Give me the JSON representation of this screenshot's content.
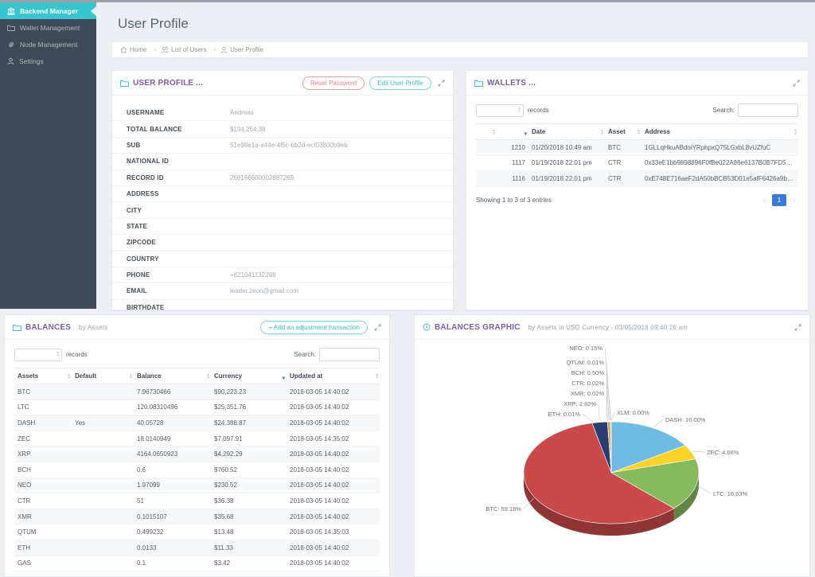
{
  "icons": {
    "sort_up": "▴",
    "sort_down": "▾"
  },
  "colors": {
    "accent_cyan": "#38c5cf",
    "accent_purple": "#7a5fa5",
    "accent_blue": "#3a7bd5",
    "danger": "#e98b85",
    "sidebar_bg": "#3e4a57"
  },
  "sidebar": {
    "items": [
      {
        "label": "Backend Manager",
        "icon": "bank-icon",
        "active": true
      },
      {
        "label": "Wallet Management",
        "icon": "folder-icon",
        "active": false
      },
      {
        "label": "Node Management",
        "icon": "link-icon",
        "active": false
      },
      {
        "label": "Settings",
        "icon": "user-icon",
        "active": false
      }
    ]
  },
  "page": {
    "title": "User Profile",
    "breadcrumb": [
      {
        "label": "Home",
        "icon": "home-icon"
      },
      {
        "label": "List of Users",
        "icon": "users-icon"
      },
      {
        "label": "User Profile",
        "icon": "user-icon"
      }
    ]
  },
  "user_profile_panel": {
    "title": "USER PROFILE ...",
    "reset_button": "Reset Password",
    "edit_button": "Edit User Profile",
    "fields": [
      {
        "label": "USERNAME",
        "value": "Andreas"
      },
      {
        "label": "TOTAL BALANCE",
        "value": "$194,254.38"
      },
      {
        "label": "SUB",
        "value": "51e98e1a-a44e-4f5c-bb2d-ecf03800b9eb"
      },
      {
        "label": "NATIONAL ID",
        "value": ""
      },
      {
        "label": "RECORD ID",
        "value": "268166600002887269"
      },
      {
        "label": "ADDRESS",
        "value": ""
      },
      {
        "label": "CITY",
        "value": ""
      },
      {
        "label": "STATE",
        "value": ""
      },
      {
        "label": "ZIPCODE",
        "value": ""
      },
      {
        "label": "COUNTRY",
        "value": ""
      },
      {
        "label": "PHONE",
        "value": "+821041132298"
      },
      {
        "label": "EMAIL",
        "value": "leader.zeon@gmail.com"
      },
      {
        "label": "BIRTHDATE",
        "value": ""
      }
    ]
  },
  "wallets_panel": {
    "title": "WALLETS ...",
    "records_label": "records",
    "search_label": "Search:",
    "table": {
      "headers": [
        "",
        "",
        "Date",
        "Asset",
        "Address"
      ],
      "rows": [
        [
          "1210",
          "01/20/2018 10:49 am",
          "BTC",
          "1GLLqHkuABdoiYRphpxQ75LGxbL8vUZfuC"
        ],
        [
          "1117",
          "01/19/2018 22:01 pm",
          "CTR",
          "0x33eE1bb9898896F0fBe022A86e6137B0B7FD5B64"
        ],
        [
          "1116",
          "01/19/2018 22:01 pm",
          "CTR",
          "0xE748E716aeF2dA50bBCB53D01e5afF6426a9b981"
        ]
      ]
    },
    "footer_text": "Showing 1 to 3 of 3 entries",
    "pagination": {
      "prev": "‹",
      "current": "1",
      "next": "›"
    }
  },
  "balances_panel": {
    "title": "BALANCES",
    "subtitle": "by Assets",
    "add_button": "+ Add an adjustment transaction",
    "records_label": "records",
    "search_label": "Search:",
    "table": {
      "headers": [
        "Assets",
        "Default",
        "Balance",
        "Currency",
        "Updated at"
      ],
      "rows": [
        [
          "BTC",
          "",
          "7.96730466",
          "$90,223.23",
          "2018-03-05 14:40:02"
        ],
        [
          "LTC",
          "",
          "120.08310496",
          "$25,351.76",
          "2018-03-05 14:40:02"
        ],
        [
          "DASH",
          "Yes",
          "40.05728",
          "$24,388.87",
          "2018-03-05 14:40:02"
        ],
        [
          "ZEC",
          "",
          "18.0140949",
          "$7,097.91",
          "2018-03-05 14:35:02"
        ],
        [
          "XRP",
          "",
          "4164.0650923",
          "$4,292.29",
          "2018-03-05 14:40:02"
        ],
        [
          "BCH",
          "",
          "0.6",
          "$760.52",
          "2018-03-05 14:40:02"
        ],
        [
          "NEO",
          "",
          "1.97099",
          "$230.52",
          "2018-03-05 14:40:02"
        ],
        [
          "CTR",
          "",
          "51",
          "$36.38",
          "2018-03-05 14:40:02"
        ],
        [
          "XMR",
          "",
          "0.1015107",
          "$35.68",
          "2018-03-05 14:40:02"
        ],
        [
          "QTUM",
          "",
          "0.499232",
          "$13.48",
          "2018-03-05 14:35:03"
        ],
        [
          "ETH",
          "",
          "0.0133",
          "$11.33",
          "2018-03-05 14:40:02"
        ],
        [
          "GAS",
          "",
          "0.1",
          "$3.42",
          "2018-03-05 14:40:02"
        ]
      ]
    }
  },
  "balances_graphic_panel": {
    "title": "BALANCES GRAPHIC",
    "subtitle": "by Assets in USD Currency - 03/05/2018 09:40:26 am"
  },
  "chart_data": {
    "type": "pie",
    "title": "BALANCES GRAPHIC by Assets in USD Currency - 03/05/2018 09:40:26 am",
    "unit": "percent",
    "legend_position": "callout-labels",
    "slices": [
      {
        "label": "XLM",
        "value": 0.0,
        "color": "#c9ced4"
      },
      {
        "label": "DASH",
        "value": 16.0,
        "color": "#6fbbe3"
      },
      {
        "label": "ZEC",
        "value": 4.66,
        "color": "#fdd32a"
      },
      {
        "label": "LTC",
        "value": 16.63,
        "color": "#87b95f"
      },
      {
        "label": "BTC",
        "value": 59.18,
        "color": "#c84a4b"
      },
      {
        "label": "ETH",
        "value": 0.01,
        "color": "#4d5760"
      },
      {
        "label": "XRP",
        "value": 2.82,
        "color": "#2a3d70"
      },
      {
        "label": "XMR",
        "value": 0.02,
        "color": "#8a8f96"
      },
      {
        "label": "CTR",
        "value": 0.02,
        "color": "#a3a8ae"
      },
      {
        "label": "BCH",
        "value": 0.5,
        "color": "#e0973e"
      },
      {
        "label": "QTUM",
        "value": 0.01,
        "color": "#b8bdc3"
      },
      {
        "label": "NEO",
        "value": 0.15,
        "color": "#97a0a8"
      }
    ]
  }
}
